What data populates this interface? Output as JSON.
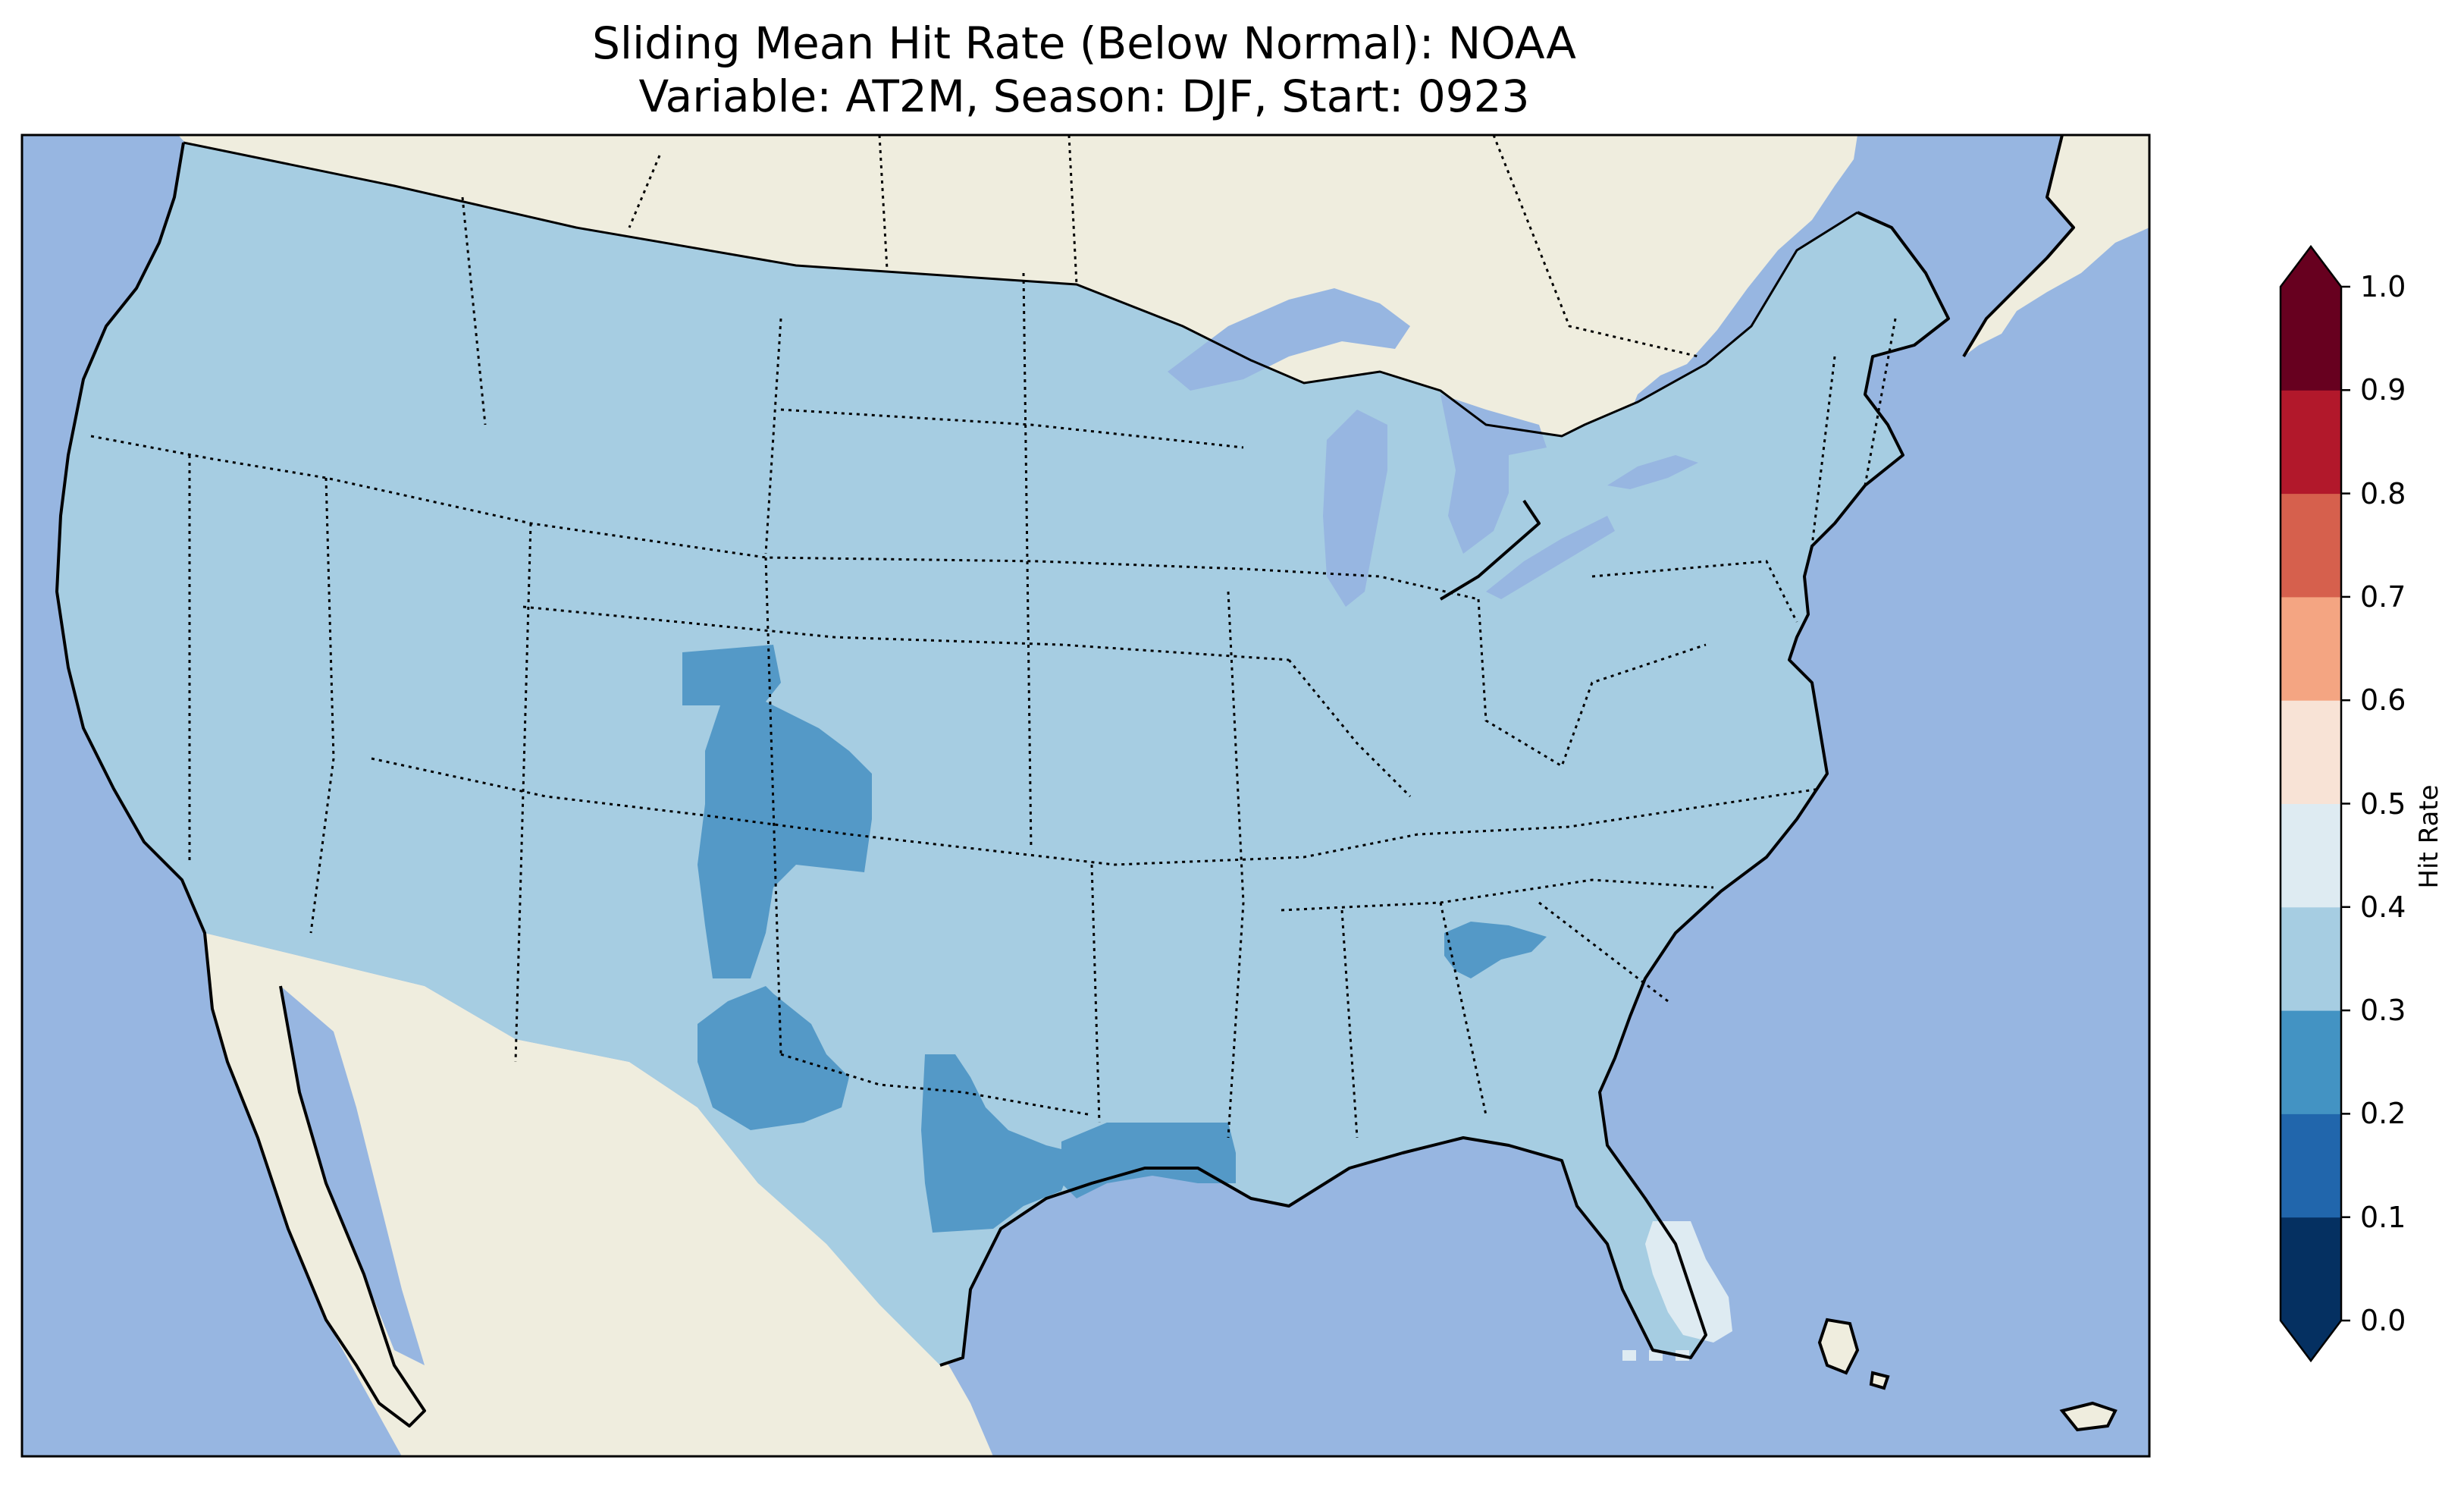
{
  "title": {
    "line1": "Sliding Mean Hit Rate (Below Normal): NOAA",
    "line2": "Variable: AT2M, Season: DJF, Start: 0923"
  },
  "colorbar": {
    "label": "Hit Rate",
    "ticks": [
      "0.0",
      "0.1",
      "0.2",
      "0.3",
      "0.4",
      "0.5",
      "0.6",
      "0.7",
      "0.8",
      "0.9",
      "1.0"
    ],
    "bins": [
      {
        "range": [
          0.0,
          0.1
        ],
        "color": "#053061"
      },
      {
        "range": [
          0.1,
          0.2
        ],
        "color": "#2166ac"
      },
      {
        "range": [
          0.2,
          0.3
        ],
        "color": "#4393c3"
      },
      {
        "range": [
          0.3,
          0.4
        ],
        "color": "#a6cde2"
      },
      {
        "range": [
          0.4,
          0.5
        ],
        "color": "#deebf2"
      },
      {
        "range": [
          0.5,
          0.6
        ],
        "color": "#f8e3d6"
      },
      {
        "range": [
          0.6,
          0.7
        ],
        "color": "#f4a582"
      },
      {
        "range": [
          0.7,
          0.8
        ],
        "color": "#d6604d"
      },
      {
        "range": [
          0.8,
          0.9
        ],
        "color": "#b2182b"
      },
      {
        "range": [
          0.9,
          1.0
        ],
        "color": "#67001f"
      }
    ],
    "extend": "both"
  },
  "map": {
    "ocean_color": "#97b6e1",
    "land_color": "#efedde",
    "base_value_color": "#a6cde2",
    "regions": [
      {
        "name": "Colorado-New Mexico corridor",
        "color": "#5499c7"
      },
      {
        "name": "West Texas",
        "color": "#5499c7"
      },
      {
        "name": "Central Texas",
        "color": "#5499c7"
      },
      {
        "name": "Texas-Louisiana coast",
        "color": "#5499c7"
      },
      {
        "name": "Alabama-Georgia",
        "color": "#5499c7"
      },
      {
        "name": "South Florida",
        "color": "#deebf2"
      }
    ]
  }
}
